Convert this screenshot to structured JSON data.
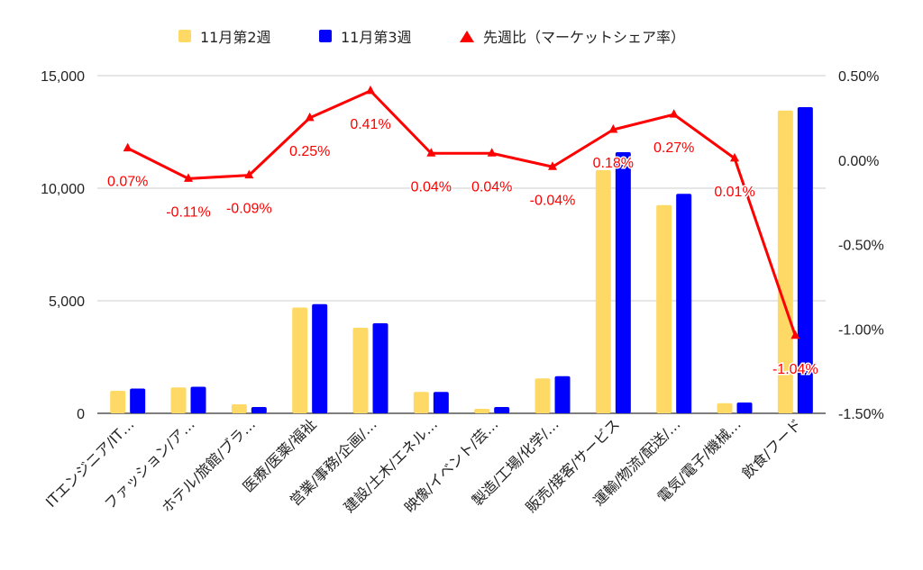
{
  "chart_data": {
    "type": "bar",
    "categories": [
      "ITエンジニア/IT…",
      "ファッション/ア…",
      "ホテル/旅館/ブラ…",
      "医療/医薬/福祉",
      "営業/事務/企画/…",
      "建設/土木/エネル…",
      "映像/イベント/芸…",
      "製造/工場/化学/…",
      "販売/接客/サービス",
      "運輸/物流/配送/…",
      "電気/電子/機械…",
      "飲食/フード"
    ],
    "series": [
      {
        "name": "11月第2週",
        "values": [
          1000,
          1150,
          400,
          4700,
          3800,
          950,
          200,
          1550,
          10800,
          9250,
          450,
          13450
        ],
        "color": "#ffd966"
      },
      {
        "name": "11月第3週",
        "values": [
          1100,
          1180,
          280,
          4850,
          4000,
          950,
          280,
          1650,
          11600,
          9750,
          480,
          13600
        ],
        "color": "#0000ff"
      }
    ],
    "line_series": {
      "name": "先週比（マーケットシェア率）",
      "values": [
        0.07,
        -0.11,
        -0.09,
        0.25,
        0.41,
        0.04,
        0.04,
        -0.04,
        0.18,
        0.27,
        0.01,
        -1.04
      ],
      "labels": [
        "0.07%",
        "-0.11%",
        "-0.09%",
        "0.25%",
        "0.41%",
        "0.04%",
        "0.04%",
        "-0.04%",
        "0.18%",
        "0.27%",
        "0.01%",
        "-1.04%"
      ],
      "color": "#ff0000",
      "axis": "right"
    },
    "ylim_left": [
      0,
      15000
    ],
    "yticks_left": [
      "0",
      "5,000",
      "10,000",
      "15,000"
    ],
    "ylim_right": [
      -1.5,
      0.5
    ],
    "yticks_right": [
      "-1.50%",
      "-1.00%",
      "-0.50%",
      "0.00%",
      "0.50%"
    ],
    "grid": true,
    "legend_position": "top"
  }
}
